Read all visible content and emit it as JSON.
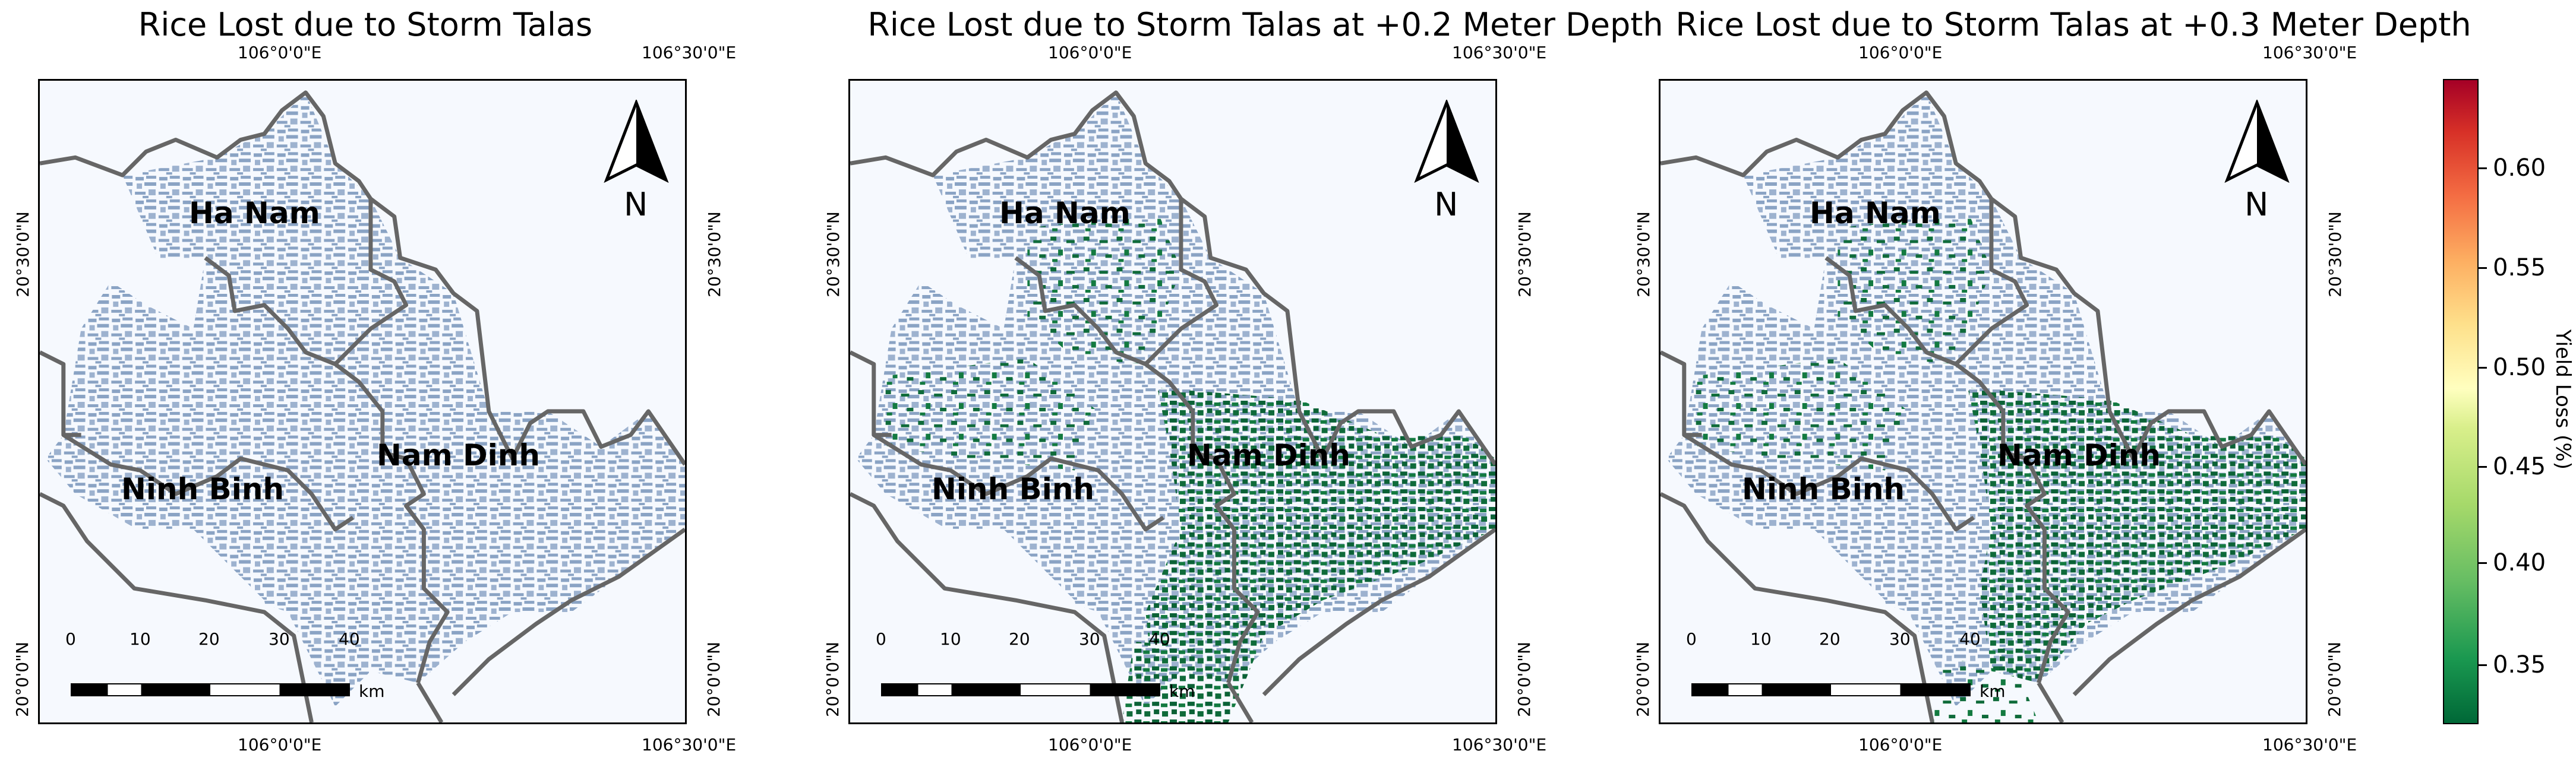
{
  "panels": [
    {
      "title": "Rice Lost due to Storm Talas",
      "overlay": false
    },
    {
      "title": "Rice Lost due to Storm Talas at +0.2 Meter Depth",
      "overlay": true
    },
    {
      "title": "Rice Lost due to Storm Talas at +0.3 Meter Depth",
      "overlay": true
    }
  ],
  "axes": {
    "lon_ticks": [
      "106°0'0\"E",
      "106°30'0\"E"
    ],
    "lat_ticks": [
      "20°30'0\"N",
      "20°0'0\"N"
    ]
  },
  "provinces": [
    "Ha Nam",
    "Nam Dinh",
    "Ninh Binh"
  ],
  "north_arrow": {
    "label": "N",
    "icon": "north-arrow-icon"
  },
  "scale_bar": {
    "ticks": [
      "0",
      "10",
      "20",
      "30",
      "40"
    ],
    "unit": "km"
  },
  "colorbar": {
    "title": "Yield Loss (%)",
    "ticks": [
      "0.35",
      "0.40",
      "0.45",
      "0.50",
      "0.55",
      "0.60"
    ],
    "colormap": "RdYlGn_r"
  },
  "colors": {
    "rice_area": "#8aa3c4",
    "loss_pixels": "#006837",
    "boundary": "#666666",
    "background": "#f6f9fe"
  }
}
